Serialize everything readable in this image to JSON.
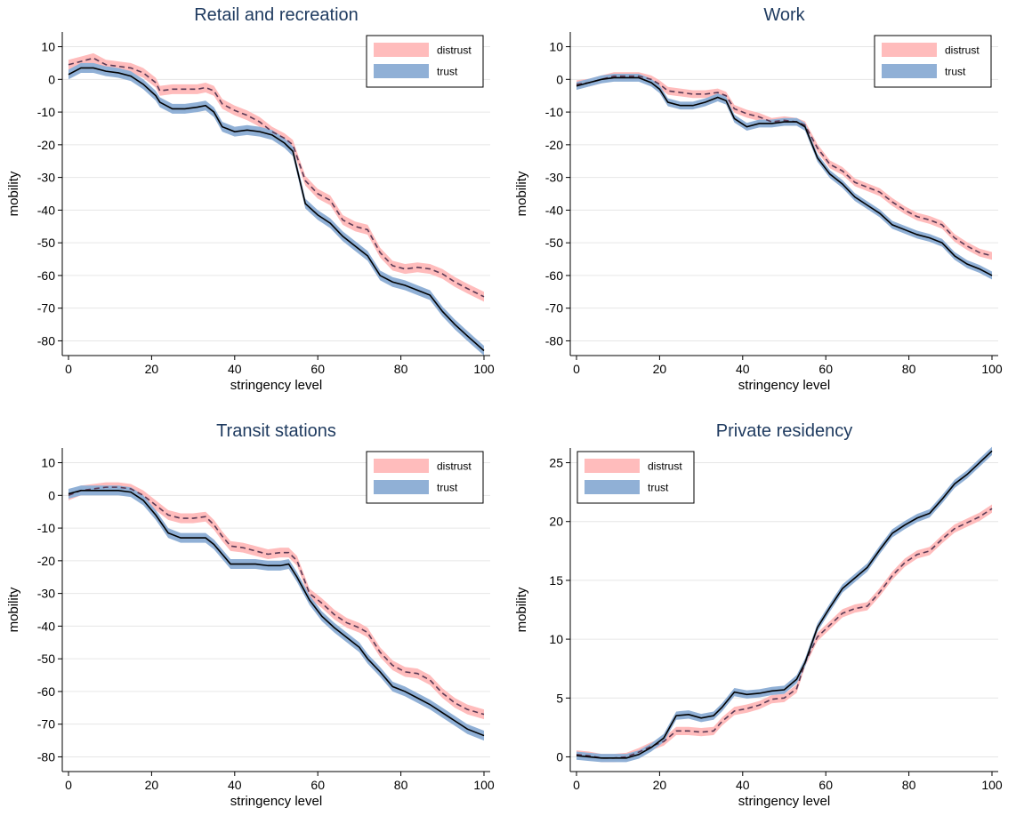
{
  "colors": {
    "distrust_band": "#ffbcbc",
    "trust_band": "#90b0d6",
    "distrust_line": "#5a3a55",
    "trust_line": "#000000",
    "title": "#1e3a5f",
    "grid": "#e6e6e6"
  },
  "chart_data": [
    {
      "type": "line",
      "title": "Retail and recreation",
      "xlabel": "stringency level",
      "ylabel": "mobility",
      "xlim": [
        0,
        100
      ],
      "ylim": [
        -80,
        10
      ],
      "xticks": [
        0,
        20,
        40,
        60,
        80,
        100
      ],
      "yticks": [
        10,
        0,
        -10,
        -20,
        -30,
        -40,
        -50,
        -60,
        -70,
        -80
      ],
      "grid": true,
      "legend": "top-right",
      "band_width": 1.5,
      "series": [
        {
          "name": "distrust",
          "style": "dashed",
          "x": [
            0,
            3,
            6,
            9,
            12,
            15,
            18,
            21,
            22,
            25,
            28,
            31,
            33,
            35,
            37,
            40,
            43,
            46,
            49,
            52,
            54,
            57,
            60,
            63,
            66,
            69,
            72,
            75,
            78,
            81,
            84,
            87,
            90,
            93,
            96,
            100
          ],
          "y": [
            4.5,
            5.5,
            6.5,
            4.5,
            4,
            3.5,
            2,
            -1,
            -3.5,
            -3,
            -3,
            -3,
            -2.5,
            -3.5,
            -7.5,
            -9.5,
            -11,
            -13,
            -16,
            -18,
            -20,
            -31,
            -35,
            -37,
            -43,
            -45,
            -46,
            -53,
            -57,
            -58,
            -57.5,
            -58,
            -59.5,
            -62,
            -64,
            -66.5
          ]
        },
        {
          "name": "trust",
          "style": "solid",
          "x": [
            0,
            3,
            6,
            9,
            12,
            15,
            18,
            21,
            22,
            25,
            28,
            31,
            33,
            35,
            37,
            40,
            43,
            46,
            49,
            52,
            54,
            57,
            60,
            63,
            66,
            69,
            72,
            75,
            78,
            81,
            84,
            87,
            90,
            93,
            96,
            100
          ],
          "y": [
            1.5,
            3.5,
            3.5,
            2.5,
            2,
            1,
            -1.5,
            -5,
            -7,
            -9,
            -9,
            -8.5,
            -8,
            -10,
            -14.5,
            -16,
            -15.5,
            -16,
            -17,
            -19.5,
            -22,
            -38,
            -41.5,
            -44,
            -48,
            -51,
            -54,
            -60,
            -62,
            -63,
            -64.5,
            -66,
            -71,
            -75,
            -78.5,
            -83
          ]
        }
      ]
    },
    {
      "type": "line",
      "title": "Work",
      "xlabel": "stringency level",
      "ylabel": "mobility",
      "xlim": [
        0,
        100
      ],
      "ylim": [
        -80,
        10
      ],
      "xticks": [
        0,
        20,
        40,
        60,
        80,
        100
      ],
      "yticks": [
        10,
        0,
        -10,
        -20,
        -30,
        -40,
        -50,
        -60,
        -70,
        -80
      ],
      "grid": true,
      "legend": "top-right",
      "band_width": 1.2,
      "series": [
        {
          "name": "distrust",
          "style": "dashed",
          "x": [
            0,
            3,
            6,
            9,
            12,
            15,
            18,
            20,
            22,
            25,
            28,
            31,
            34,
            36,
            38,
            41,
            44,
            47,
            50,
            53,
            55,
            58,
            61,
            64,
            67,
            70,
            73,
            76,
            79,
            82,
            85,
            88,
            91,
            94,
            97,
            100
          ],
          "y": [
            -1.5,
            -1,
            0,
            1,
            1,
            1,
            0,
            -1.5,
            -3.5,
            -4,
            -4.5,
            -4.5,
            -4,
            -5,
            -9,
            -10.5,
            -11.5,
            -13,
            -12.5,
            -13,
            -14,
            -21,
            -26,
            -28,
            -31.5,
            -33,
            -34.5,
            -37.5,
            -40,
            -42,
            -43,
            -44.5,
            -48.5,
            -51,
            -53,
            -54
          ]
        },
        {
          "name": "trust",
          "style": "solid",
          "x": [
            0,
            3,
            6,
            9,
            12,
            15,
            18,
            20,
            22,
            25,
            28,
            31,
            34,
            36,
            38,
            41,
            44,
            47,
            50,
            53,
            55,
            58,
            61,
            64,
            67,
            70,
            73,
            76,
            79,
            82,
            85,
            88,
            91,
            94,
            97,
            100
          ],
          "y": [
            -2,
            -1,
            0,
            0.5,
            0.5,
            0.5,
            -1,
            -3,
            -7,
            -8,
            -8,
            -7,
            -5.5,
            -6.5,
            -12,
            -14.5,
            -13.5,
            -13.5,
            -13,
            -13,
            -14.5,
            -24,
            -29,
            -32,
            -36,
            -38.5,
            -41,
            -44.5,
            -46,
            -47.5,
            -48.5,
            -50,
            -54,
            -56.5,
            -58,
            -60
          ]
        }
      ]
    },
    {
      "type": "line",
      "title": "Transit stations",
      "xlabel": "stringency level",
      "ylabel": "mobility",
      "xlim": [
        0,
        100
      ],
      "ylim": [
        -80,
        10
      ],
      "xticks": [
        0,
        20,
        40,
        60,
        80,
        100
      ],
      "yticks": [
        10,
        0,
        -10,
        -20,
        -30,
        -40,
        -50,
        -60,
        -70,
        -80
      ],
      "grid": true,
      "legend": "top-right",
      "band_width": 1.5,
      "series": [
        {
          "name": "distrust",
          "style": "dashed",
          "x": [
            0,
            3,
            6,
            9,
            12,
            15,
            18,
            21,
            24,
            27,
            30,
            33,
            35,
            37,
            39,
            42,
            45,
            48,
            51,
            53,
            55,
            58,
            61,
            64,
            67,
            70,
            72,
            75,
            78,
            81,
            84,
            87,
            90,
            93,
            96,
            100
          ],
          "y": [
            0,
            1.5,
            2,
            2.5,
            2.5,
            2,
            0,
            -3,
            -6,
            -7,
            -7,
            -6.5,
            -9,
            -12.5,
            -15.5,
            -16,
            -17,
            -18,
            -17.5,
            -17.5,
            -20,
            -30,
            -33,
            -36.5,
            -39,
            -40.5,
            -42,
            -48,
            -52,
            -54,
            -54.5,
            -56.5,
            -60.5,
            -63.5,
            -65.5,
            -67
          ]
        },
        {
          "name": "trust",
          "style": "solid",
          "x": [
            0,
            3,
            6,
            9,
            12,
            15,
            18,
            21,
            24,
            27,
            30,
            33,
            35,
            37,
            39,
            42,
            45,
            48,
            51,
            53,
            55,
            58,
            61,
            64,
            67,
            70,
            72,
            75,
            78,
            81,
            84,
            87,
            90,
            93,
            96,
            100
          ],
          "y": [
            0.5,
            1.5,
            1.5,
            1.5,
            1.5,
            1,
            -1.5,
            -6,
            -11.5,
            -13,
            -13,
            -13,
            -15,
            -18,
            -21,
            -21,
            -21,
            -21.5,
            -21.5,
            -21,
            -25,
            -32,
            -37,
            -40.5,
            -43.5,
            -46.5,
            -50,
            -54,
            -58.5,
            -60,
            -62,
            -64,
            -66.5,
            -69,
            -71.5,
            -73.5
          ]
        }
      ]
    },
    {
      "type": "line",
      "title": "Private residency",
      "xlabel": "stringency level",
      "ylabel": "mobility",
      "xlim": [
        0,
        100
      ],
      "ylim": [
        0,
        25
      ],
      "xticks": [
        0,
        20,
        40,
        60,
        80,
        100
      ],
      "yticks": [
        25,
        20,
        15,
        10,
        5,
        0
      ],
      "grid": true,
      "legend": "top-left",
      "band_width": 0.35,
      "series": [
        {
          "name": "distrust",
          "style": "dashed",
          "x": [
            0,
            3,
            6,
            9,
            12,
            15,
            18,
            21,
            24,
            27,
            30,
            33,
            35,
            38,
            41,
            44,
            47,
            50,
            53,
            55,
            58,
            61,
            64,
            67,
            70,
            73,
            76,
            79,
            82,
            85,
            88,
            91,
            94,
            97,
            100
          ],
          "y": [
            0.2,
            0.1,
            -0.1,
            -0.1,
            0,
            0.4,
            0.9,
            1.3,
            2.2,
            2.2,
            2.1,
            2.2,
            3.0,
            3.9,
            4.1,
            4.4,
            4.9,
            5.0,
            5.8,
            8.0,
            10.2,
            11.2,
            12.2,
            12.6,
            12.8,
            14.0,
            15.4,
            16.5,
            17.2,
            17.5,
            18.5,
            19.4,
            19.9,
            20.4,
            21.1
          ]
        },
        {
          "name": "trust",
          "style": "solid",
          "x": [
            0,
            3,
            6,
            9,
            12,
            15,
            18,
            21,
            24,
            27,
            30,
            33,
            35,
            38,
            41,
            44,
            47,
            50,
            53,
            55,
            58,
            61,
            64,
            67,
            70,
            73,
            76,
            79,
            82,
            85,
            88,
            91,
            94,
            97,
            100
          ],
          "y": [
            0.1,
            0,
            -0.1,
            -0.1,
            -0.1,
            0.2,
            0.8,
            1.6,
            3.5,
            3.6,
            3.3,
            3.5,
            4.2,
            5.5,
            5.3,
            5.4,
            5.6,
            5.7,
            6.6,
            8.0,
            11.0,
            12.7,
            14.3,
            15.2,
            16.1,
            17.6,
            19.0,
            19.7,
            20.3,
            20.7,
            21.9,
            23.2,
            24.0,
            25.0,
            26.0
          ]
        }
      ]
    }
  ]
}
